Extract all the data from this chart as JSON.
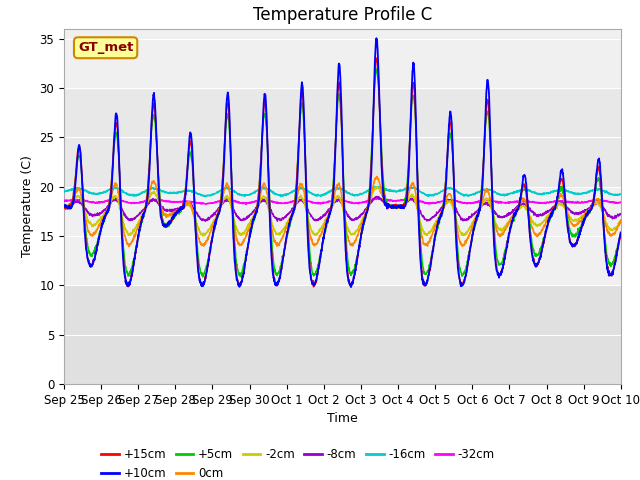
{
  "title": "Temperature Profile C",
  "xlabel": "Time",
  "ylabel": "Temperature (C)",
  "ylim": [
    0,
    36
  ],
  "yticks": [
    0,
    5,
    10,
    15,
    20,
    25,
    30,
    35
  ],
  "x_tick_labels": [
    "Sep 25",
    "Sep 26",
    "Sep 27",
    "Sep 28",
    "Sep 29",
    "Sep 30",
    "Oct 1",
    "Oct 2",
    "Oct 3",
    "Oct 4",
    "Oct 5",
    "Oct 6",
    "Oct 7",
    "Oct 8",
    "Oct 9",
    "Oct 10"
  ],
  "legend_labels": [
    "+15cm",
    "+10cm",
    "+5cm",
    "0cm",
    "-2cm",
    "-8cm",
    "-16cm",
    "-32cm"
  ],
  "legend_colors": [
    "#ff0000",
    "#0000ff",
    "#00cc00",
    "#ff8800",
    "#cccc00",
    "#9900cc",
    "#00cccc",
    "#ff00ff"
  ],
  "bg_band1_color": "#e8e8e8",
  "bg_band2_color": "#d8d8d8",
  "label_box_color": "#ffff99",
  "label_box_edge": "#cc8800",
  "label_text": "GT_met",
  "label_text_color": "#880000",
  "title_fontsize": 12,
  "axis_fontsize": 9,
  "tick_fontsize": 8.5
}
